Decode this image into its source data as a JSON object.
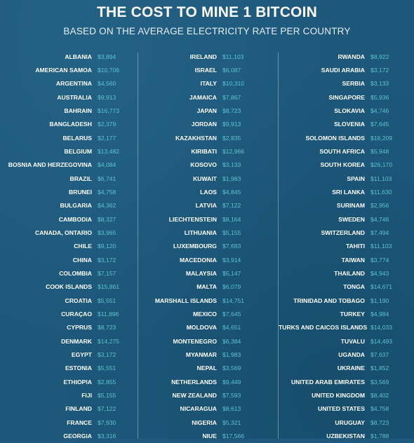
{
  "title": "THE COST TO MINE 1 BITCOIN",
  "subtitle": "BASED ON THE AVERAGE ELECTRICITY RATE PER COUNTRY",
  "columns": [
    [
      {
        "country": "ALBANIA",
        "cost": "$3,894"
      },
      {
        "country": "AMERICAN SAMOA",
        "cost": "$10,706"
      },
      {
        "country": "ARGENTINA",
        "cost": "$4,560"
      },
      {
        "country": "AUSTRALIA",
        "cost": "$9,913"
      },
      {
        "country": "BAHRAIN",
        "cost": "$16,773"
      },
      {
        "country": "BANGLADESH",
        "cost": "$2,379"
      },
      {
        "country": "BELARUS",
        "cost": "$2,177"
      },
      {
        "country": "BELGIUM",
        "cost": "$13,482"
      },
      {
        "country": "BOSNIA AND HERZEGOVINA",
        "cost": "$4,084"
      },
      {
        "country": "BRAZIL",
        "cost": "$6,741"
      },
      {
        "country": "BRUNEI",
        "cost": "$4,758"
      },
      {
        "country": "BULGARIA",
        "cost": "$4,362"
      },
      {
        "country": "CAMBODIA",
        "cost": "$8,327"
      },
      {
        "country": "CANADA, ONTARIO",
        "cost": "$3,965"
      },
      {
        "country": "CHILE",
        "cost": "$9,120"
      },
      {
        "country": "CHINA",
        "cost": "$3,172"
      },
      {
        "country": "COLOMBIA",
        "cost": "$7,157"
      },
      {
        "country": "COOK ISLANDS",
        "cost": "$15,861"
      },
      {
        "country": "CROATIA",
        "cost": "$5,551"
      },
      {
        "country": "CURAÇAO",
        "cost": "$11,896"
      },
      {
        "country": "CYPRUS",
        "cost": "$8,723"
      },
      {
        "country": "DENMARK",
        "cost": "$14,275"
      },
      {
        "country": "EGYPT",
        "cost": "$3,172"
      },
      {
        "country": "ESTONIA",
        "cost": "$5,551"
      },
      {
        "country": "ETHIOPIA",
        "cost": "$2,855"
      },
      {
        "country": "FIJI",
        "cost": "$5,155"
      },
      {
        "country": "FINLAND",
        "cost": "$7,122"
      },
      {
        "country": "FRANCE",
        "cost": "$7,930"
      },
      {
        "country": "GEORGIA",
        "cost": "$3,316"
      }
    ],
    [
      {
        "country": "IRELAND",
        "cost": "$11,103"
      },
      {
        "country": "ISRAEL",
        "cost": "$6,087"
      },
      {
        "country": "ITALY",
        "cost": "$10,310"
      },
      {
        "country": "JAMAICA",
        "cost": "$7,867"
      },
      {
        "country": "JAPAN",
        "cost": "$8,723"
      },
      {
        "country": "JORDAN",
        "cost": "$9,913"
      },
      {
        "country": "KAZAKHSTAN",
        "cost": "$2,835"
      },
      {
        "country": "KIRIBATI",
        "cost": "$12,966"
      },
      {
        "country": "KOSOVO",
        "cost": "$3,133"
      },
      {
        "country": "KUWAIT",
        "cost": "$1,983"
      },
      {
        "country": "LAOS",
        "cost": "$4,845"
      },
      {
        "country": "LATVIA",
        "cost": "$7,122"
      },
      {
        "country": "LIECHTENSTEIN",
        "cost": "$8,164"
      },
      {
        "country": "LITHUANIA",
        "cost": "$5,155"
      },
      {
        "country": "LUXEMBOURG",
        "cost": "$7,693"
      },
      {
        "country": "MACEDONIA",
        "cost": "$3,914"
      },
      {
        "country": "MALAYSIA",
        "cost": "$5,147"
      },
      {
        "country": "MALTA",
        "cost": "$6,079"
      },
      {
        "country": "MARSHALL ISLANDS",
        "cost": "$14,751"
      },
      {
        "country": "MEXICO",
        "cost": "$7,645"
      },
      {
        "country": "MOLDOVA",
        "cost": "$4,651"
      },
      {
        "country": "MONTENEGRO",
        "cost": "$6,384"
      },
      {
        "country": "MYANMAR",
        "cost": "$1,983"
      },
      {
        "country": "NEPAL",
        "cost": "$3,569"
      },
      {
        "country": "NETHERLANDS",
        "cost": "$9,449"
      },
      {
        "country": "NEW ZEALAND",
        "cost": "$7,593"
      },
      {
        "country": "NICARAGUA",
        "cost": "$8,613"
      },
      {
        "country": "NIGERIA",
        "cost": "$5,321"
      },
      {
        "country": "NIUE",
        "cost": "$17,566"
      }
    ],
    [
      {
        "country": "RWANDA",
        "cost": "$8,922"
      },
      {
        "country": "SAUDI ARABIA",
        "cost": "$3,172"
      },
      {
        "country": "SERBIA",
        "cost": "$3,133"
      },
      {
        "country": "SINGAPORE",
        "cost": "$5,936"
      },
      {
        "country": "SLOKAVIA",
        "cost": "$4,746"
      },
      {
        "country": "SLOVENIA",
        "cost": "$7,645"
      },
      {
        "country": "SOLOMON ISLANDS",
        "cost": "$16,209"
      },
      {
        "country": "SOUTH AFRICA",
        "cost": "$5,948"
      },
      {
        "country": "SOUTH KOREA",
        "cost": "$26,170"
      },
      {
        "country": "SPAIN",
        "cost": "$11,103"
      },
      {
        "country": "SRI LANKA",
        "cost": "$11,630"
      },
      {
        "country": "SURINAM",
        "cost": "$2,956"
      },
      {
        "country": "SWEDEN",
        "cost": "$4,746"
      },
      {
        "country": "SWITZERLAND",
        "cost": "$7,494"
      },
      {
        "country": "TAHITI",
        "cost": "$11,103"
      },
      {
        "country": "TAIWAN",
        "cost": "$3,774"
      },
      {
        "country": "THAILAND",
        "cost": "$4,943"
      },
      {
        "country": "TONGA",
        "cost": "$14,671"
      },
      {
        "country": "TRINIDAD AND TOBAGO",
        "cost": "$1,190"
      },
      {
        "country": "TURKEY",
        "cost": "$4,984"
      },
      {
        "country": "TURKS AND CAICOS ISLANDS",
        "cost": "$14,033"
      },
      {
        "country": "TUVALU",
        "cost": "$14,493"
      },
      {
        "country": "UGANDA",
        "cost": "$7,637"
      },
      {
        "country": "UKRAINE",
        "cost": "$1,852"
      },
      {
        "country": "UNITED ARAB EMIRATES",
        "cost": "$3,569"
      },
      {
        "country": "UNITED KINGDOM",
        "cost": "$8,402"
      },
      {
        "country": "UNITED STATES",
        "cost": "$4,758"
      },
      {
        "country": "URUGUAY",
        "cost": "$8,723"
      },
      {
        "country": "UZBEKISTAN",
        "cost": "$1,788"
      }
    ]
  ],
  "colors": {
    "background": "#1d587b",
    "country_text": "#ffffff",
    "cost_text": "#5fc4cf"
  }
}
